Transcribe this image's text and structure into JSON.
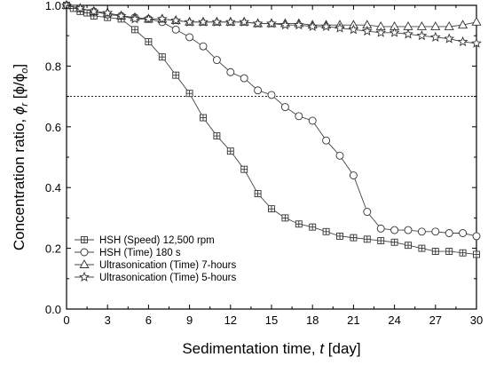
{
  "chart_data": {
    "type": "line",
    "title": "",
    "xlabel": {
      "prefix": "Sedimentation time, ",
      "var": "t",
      "suffix": " [day]"
    },
    "ylabel": {
      "prefix": "Concentration ratio, ",
      "var": "ϕ",
      "sub": "r",
      "bracket": " [ϕ/ϕ",
      "sub2": "o",
      "close": "]"
    },
    "xlim": [
      0,
      30
    ],
    "ylim": [
      0.0,
      1.0
    ],
    "xticks": [
      "0",
      "3",
      "6",
      "9",
      "12",
      "15",
      "18",
      "21",
      "24",
      "27",
      "30"
    ],
    "yticks": [
      "0.0",
      "0.2",
      "0.4",
      "0.6",
      "0.8",
      "1.0"
    ],
    "reference_line": {
      "y": 0.7,
      "style": "dotted"
    },
    "grid": false,
    "legend_position": "bottom-left",
    "series": [
      {
        "name": "HSH (Speed) 12,500 rpm",
        "marker": "boxplus",
        "x": [
          0,
          0.5,
          1,
          1.5,
          2,
          3,
          4,
          5,
          6,
          7,
          8,
          9,
          10,
          11,
          12,
          13,
          14,
          15,
          16,
          17,
          18,
          19,
          20,
          21,
          22,
          23,
          24,
          25,
          26,
          27,
          28,
          29,
          30
        ],
        "y": [
          1.0,
          0.99,
          0.98,
          0.975,
          0.965,
          0.96,
          0.955,
          0.92,
          0.88,
          0.83,
          0.77,
          0.71,
          0.63,
          0.57,
          0.52,
          0.46,
          0.38,
          0.33,
          0.3,
          0.28,
          0.27,
          0.255,
          0.24,
          0.235,
          0.23,
          0.225,
          0.22,
          0.21,
          0.2,
          0.19,
          0.19,
          0.185,
          0.18
        ]
      },
      {
        "name": "HSH (Time) 180 s",
        "marker": "circle",
        "x": [
          0,
          1,
          2,
          3,
          4,
          5,
          6,
          7,
          8,
          9,
          10,
          11,
          12,
          13,
          14,
          15,
          16,
          17,
          18,
          19,
          20,
          21,
          22,
          23,
          24,
          25,
          26,
          27,
          28,
          29,
          30
        ],
        "y": [
          1.0,
          0.99,
          0.98,
          0.97,
          0.965,
          0.96,
          0.955,
          0.945,
          0.92,
          0.895,
          0.865,
          0.82,
          0.78,
          0.76,
          0.72,
          0.705,
          0.665,
          0.635,
          0.62,
          0.555,
          0.505,
          0.44,
          0.32,
          0.265,
          0.26,
          0.26,
          0.255,
          0.255,
          0.25,
          0.25,
          0.24
        ]
      },
      {
        "name": "Ultrasonication (Time) 7-hours",
        "marker": "triangle",
        "x": [
          0,
          1,
          2,
          3,
          4,
          5,
          6,
          7,
          8,
          9,
          10,
          11,
          12,
          13,
          14,
          15,
          16,
          17,
          18,
          19,
          20,
          21,
          22,
          23,
          24,
          25,
          26,
          27,
          28,
          29,
          30
        ],
        "y": [
          1.0,
          0.99,
          0.98,
          0.975,
          0.965,
          0.96,
          0.955,
          0.955,
          0.95,
          0.945,
          0.945,
          0.945,
          0.945,
          0.945,
          0.94,
          0.94,
          0.94,
          0.94,
          0.935,
          0.935,
          0.935,
          0.935,
          0.935,
          0.93,
          0.93,
          0.93,
          0.93,
          0.93,
          0.93,
          0.935,
          0.945
        ]
      },
      {
        "name": "Ultrasonication (Time) 5-hours",
        "marker": "star",
        "x": [
          0,
          1,
          2,
          3,
          4,
          5,
          6,
          7,
          8,
          9,
          10,
          11,
          12,
          13,
          14,
          15,
          16,
          17,
          18,
          19,
          20,
          21,
          22,
          23,
          24,
          25,
          26,
          27,
          28,
          29,
          30
        ],
        "y": [
          1.0,
          0.99,
          0.98,
          0.975,
          0.965,
          0.955,
          0.955,
          0.955,
          0.95,
          0.945,
          0.945,
          0.945,
          0.945,
          0.945,
          0.94,
          0.94,
          0.935,
          0.935,
          0.93,
          0.93,
          0.925,
          0.92,
          0.915,
          0.91,
          0.91,
          0.905,
          0.9,
          0.895,
          0.89,
          0.88,
          0.875
        ]
      }
    ]
  }
}
